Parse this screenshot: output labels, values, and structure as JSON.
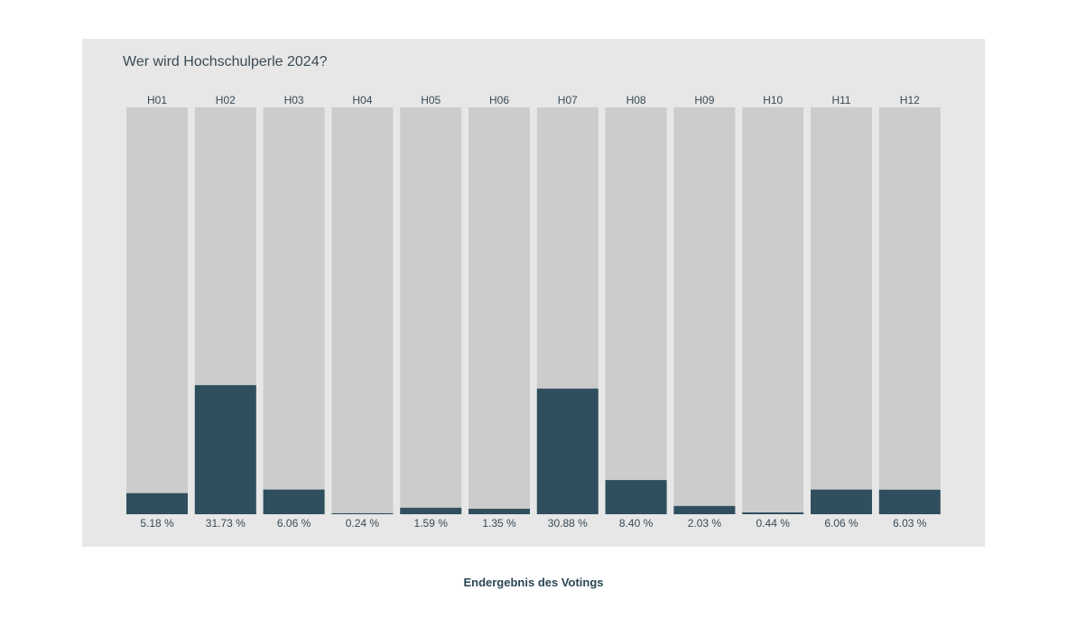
{
  "chart_data": {
    "type": "bar",
    "title": "Wer wird Hochschulperle 2024?",
    "categories": [
      "H01",
      "H02",
      "H03",
      "H04",
      "H05",
      "H06",
      "H07",
      "H08",
      "H09",
      "H10",
      "H11",
      "H12"
    ],
    "values": [
      5.18,
      31.73,
      6.06,
      0.24,
      1.59,
      1.35,
      30.88,
      8.4,
      2.03,
      0.44,
      6.06,
      6.03
    ],
    "value_labels": [
      "5.18 %",
      "31.73 %",
      "6.06 %",
      "0.24 %",
      "1.59 %",
      "1.35 %",
      "30.88 %",
      "8.40 %",
      "2.03 %",
      "0.44 %",
      "6.06 %",
      "6.03 %"
    ],
    "ylim": [
      0,
      100
    ],
    "xlabel": "",
    "ylabel": "",
    "grid": false,
    "colors": {
      "bar_fill": "#2f4f5e",
      "bar_track": "#cccccc",
      "panel": "#e7e7e7",
      "text": "#3a4a55"
    }
  },
  "caption": "Endergebnis des Votings"
}
